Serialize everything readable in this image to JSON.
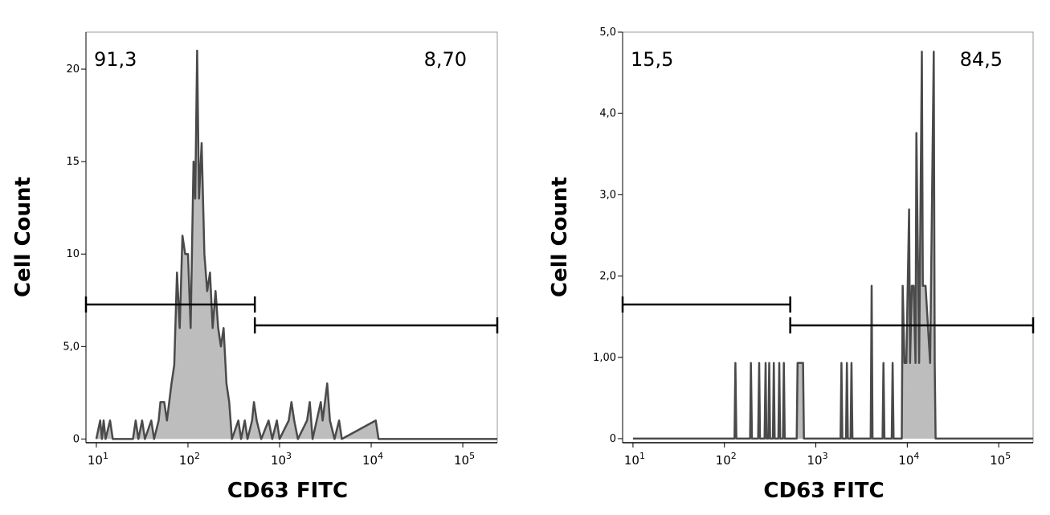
{
  "chart_data": [
    {
      "type": "line",
      "x_label": "CD63 FITC",
      "y_label": "Cell Count",
      "xscale": "log",
      "xlim": [
        7.7,
        238000
      ],
      "ylim": [
        -0.2,
        22
      ],
      "xticks": [
        {
          "value": 10,
          "label": "10",
          "exponent": "1"
        },
        {
          "value": 100,
          "label": "10",
          "exponent": "2"
        },
        {
          "value": 1000,
          "label": "10",
          "exponent": "3"
        },
        {
          "value": 10000,
          "label": "10",
          "exponent": "4"
        },
        {
          "value": 100000,
          "label": "10",
          "exponent": "5"
        }
      ],
      "yticks": [
        0,
        {
          "value": 5,
          "label": "5,0"
        },
        10,
        15,
        20
      ],
      "line_color": "#4a4a4a",
      "fill_color": "#bdbdbd",
      "x": [
        10,
        11,
        11.5,
        12,
        12.6,
        14.1,
        15.1,
        25.1,
        26.9,
        28.8,
        31.6,
        33.9,
        39.8,
        42.7,
        47.9,
        50.1,
        55,
        58.9,
        66.1,
        70.8,
        75.9,
        81.3,
        87.1,
        93.3,
        100,
        107,
        115,
        120,
        126,
        132,
        141,
        151,
        162,
        174,
        186,
        200,
        214,
        229,
        245,
        263,
        282,
        302,
        355,
        380,
        417,
        447,
        501,
        525,
        562,
        631,
        759,
        832,
        933,
        1000,
        1259,
        1349,
        1445,
        1585,
        1995,
        2138,
        2291,
        2818,
        2951,
        3311,
        3548,
        3981,
        4467,
        4786,
        11220,
        12023,
        238000
      ],
      "values": [
        0,
        1,
        0,
        1,
        0,
        1,
        0,
        0,
        1,
        0,
        1,
        0,
        1,
        0,
        1,
        2,
        2,
        1,
        3,
        4,
        9,
        6,
        11,
        10,
        10,
        6,
        15,
        13,
        21,
        13,
        16,
        10,
        8,
        9,
        6,
        8,
        6,
        5,
        6,
        3,
        2,
        0,
        1,
        0,
        1,
        0,
        1,
        2,
        1,
        0,
        1,
        0,
        1,
        0,
        1,
        2,
        1,
        0,
        1,
        2,
        0,
        2,
        1,
        3,
        1,
        0,
        1,
        0,
        1,
        0,
        0
      ],
      "gates": [
        {
          "label": "91,3",
          "x": [
            7.7,
            537
          ]
        },
        {
          "label": "8,70",
          "x": [
            537,
            238000
          ]
        }
      ]
    },
    {
      "type": "line",
      "x_label": "CD63 FITC",
      "y_label": "Cell Count",
      "xscale": "log",
      "xlim": [
        7.7,
        238000
      ],
      "ylim": [
        -0.05,
        5.0
      ],
      "xticks": [
        {
          "value": 10,
          "label": "10",
          "exponent": "1"
        },
        {
          "value": 100,
          "label": "10",
          "exponent": "2"
        },
        {
          "value": 1000,
          "label": "10",
          "exponent": "3"
        },
        {
          "value": 10000,
          "label": "10",
          "exponent": "4"
        },
        {
          "value": 100000,
          "label": "10",
          "exponent": "5"
        }
      ],
      "yticks": [
        0,
        {
          "value": 1,
          "label": "1,00"
        },
        {
          "value": 2,
          "label": "2,0"
        },
        {
          "value": 3,
          "label": "3,0"
        },
        {
          "value": 4,
          "label": "4,0"
        },
        {
          "value": 5,
          "label": "5,0"
        }
      ],
      "line_color": "#4a4a4a",
      "fill_color": "#bdbdbd",
      "x": [
        10,
        129,
        132,
        135,
        191,
        195,
        200,
        234,
        240,
        245,
        275,
        282,
        288,
        302,
        309,
        316,
        339,
        347,
        355,
        389,
        398,
        407,
        437,
        447,
        457,
        617,
        631,
        676,
        724,
        741,
        1862,
        1905,
        1950,
        2138,
        2188,
        2239,
        2399,
        2455,
        2512,
        3981,
        4074,
        4169,
        5370,
        5495,
        5623,
        6761,
        6918,
        7079,
        8710,
        8913,
        9333,
        9772,
        10470,
        10720,
        11220,
        11750,
        12300,
        12590,
        13180,
        13490,
        14450,
        14790,
        15850,
        17780,
        19500,
        19950,
        20420,
        238000
      ],
      "values": [
        0,
        0,
        0.93,
        0,
        0,
        0.93,
        0,
        0,
        0.93,
        0,
        0,
        0.93,
        0,
        0,
        0.93,
        0,
        0,
        0.93,
        0,
        0,
        0.93,
        0,
        0,
        0.93,
        0,
        0,
        0.93,
        0.93,
        0.93,
        0,
        0,
        0.93,
        0,
        0,
        0.93,
        0,
        0,
        0.93,
        0,
        0,
        1.88,
        0,
        0,
        0.93,
        0,
        0,
        0.93,
        0,
        0,
        1.88,
        0.93,
        0.93,
        2.82,
        0.93,
        1.88,
        1.88,
        0.93,
        3.76,
        1.88,
        0.93,
        4.76,
        1.88,
        1.88,
        0.93,
        4.76,
        0.93,
        0,
        0
      ],
      "gates": [
        {
          "label": "15,5",
          "x": [
            7.7,
            525
          ]
        },
        {
          "label": "84,5",
          "x": [
            525,
            238000
          ]
        }
      ]
    }
  ]
}
